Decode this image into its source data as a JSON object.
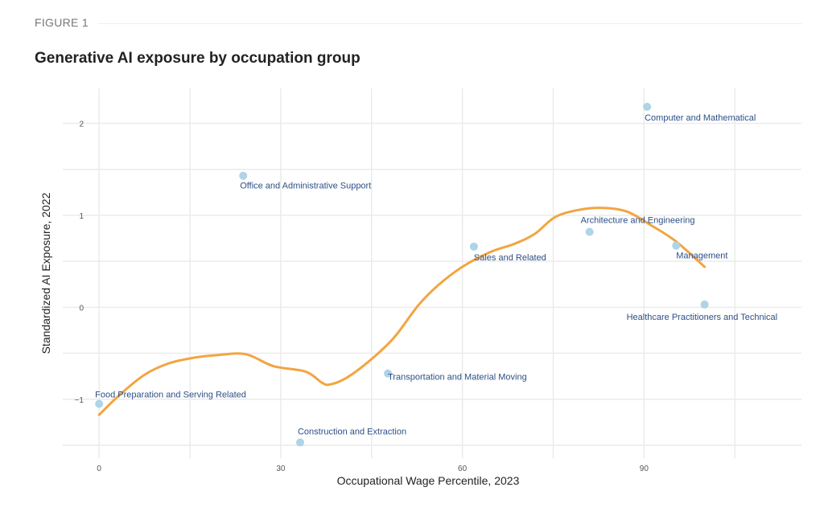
{
  "figure_label": "FIGURE 1",
  "chart_data": {
    "type": "scatter",
    "title": "Generative AI exposure by occupation group",
    "xlabel": "Occupational Wage Percentile, 2023",
    "ylabel": "Standardized AI Exposure, 2022",
    "xlim": [
      -6,
      116
    ],
    "ylim": [
      -1.64,
      2.38
    ],
    "xticks": [
      0,
      30,
      60,
      90
    ],
    "yticks": [
      -1,
      0,
      1,
      2
    ],
    "xtick_labels": [
      "0",
      "30",
      "60",
      "90"
    ],
    "ytick_labels": [
      "−1",
      "0",
      "1",
      "2"
    ],
    "grid": true,
    "colors": {
      "points": "#aed4e6",
      "labels": "#2c4f86",
      "trend": "#f2a541",
      "grid": "#ebebeb"
    },
    "points": [
      {
        "label": "Food Preparation and Serving Related",
        "x": 0,
        "y": -1.05
      },
      {
        "label": "Construction and Extraction",
        "x": 33.2,
        "y": -1.47
      },
      {
        "label": "Office and Administrative Support",
        "x": 23.8,
        "y": 1.43
      },
      {
        "label": "Transportation and Material Moving",
        "x": 47.7,
        "y": -0.72
      },
      {
        "label": "Sales and Related",
        "x": 61.9,
        "y": 0.66
      },
      {
        "label": "Architecture and Engineering",
        "x": 81.0,
        "y": 0.82
      },
      {
        "label": "Computer and Mathematical",
        "x": 90.5,
        "y": 2.18
      },
      {
        "label": "Management",
        "x": 95.3,
        "y": 0.67
      },
      {
        "label": "Healthcare Practitioners and Technical",
        "x": 100,
        "y": 0.03
      }
    ],
    "trend_line": {
      "x": [
        0,
        3.6,
        7.6,
        11.5,
        15.5,
        19.5,
        24.2,
        28.8,
        34.1,
        36.8,
        38.1,
        40.8,
        44.7,
        48.7,
        52.7,
        56.0,
        60.0,
        64.6,
        68.6,
        72.0,
        75.3,
        79.3,
        83.2,
        87.2,
        91.2,
        95.2,
        100
      ],
      "y": [
        -1.17,
        -0.94,
        -0.73,
        -0.61,
        -0.55,
        -0.52,
        -0.51,
        -0.64,
        -0.7,
        -0.82,
        -0.84,
        -0.77,
        -0.58,
        -0.33,
        0.02,
        0.24,
        0.44,
        0.6,
        0.69,
        0.8,
        0.98,
        1.06,
        1.08,
        1.04,
        0.89,
        0.72,
        0.44
      ]
    }
  }
}
